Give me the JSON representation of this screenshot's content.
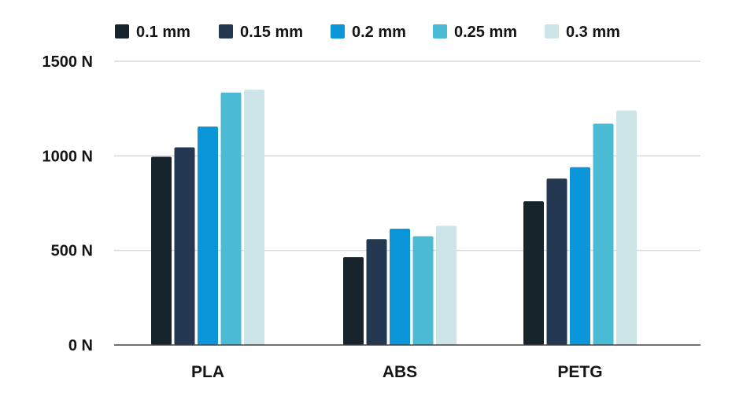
{
  "chart_data": {
    "type": "bar",
    "title": "",
    "xlabel": "",
    "ylabel": "",
    "categories": [
      "PLA",
      "ABS",
      "PETG"
    ],
    "ylim": [
      0,
      1500
    ],
    "yticks": [
      0,
      500,
      1000,
      1500
    ],
    "ytick_labels": [
      "0 N",
      "500 N",
      "1000 N",
      "1500 N"
    ],
    "grid": true,
    "legend_position": "top",
    "series": [
      {
        "name": "0.1 mm",
        "color": "#17242b",
        "values": [
          995,
          465,
          760
        ]
      },
      {
        "name": "0.15 mm",
        "color": "#243852",
        "values": [
          1045,
          560,
          880
        ]
      },
      {
        "name": "0.2 mm",
        "color": "#0b96d9",
        "values": [
          1155,
          615,
          940
        ]
      },
      {
        "name": "0.25 mm",
        "color": "#4bbad4",
        "values": [
          1335,
          575,
          1170
        ]
      },
      {
        "name": "0.3 mm",
        "color": "#cde5e9",
        "values": [
          1350,
          630,
          1240
        ]
      }
    ]
  }
}
